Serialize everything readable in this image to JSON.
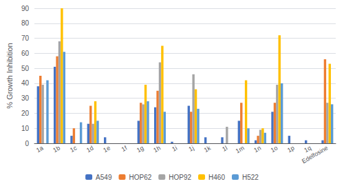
{
  "chart_data": {
    "type": "bar",
    "y_label": "% Growth Inhibition",
    "categories": [
      "1a",
      "1b",
      "1c",
      "1d",
      "1e",
      "1f",
      "1g",
      "1h",
      "1i",
      "1j",
      "1k",
      "1l",
      "1m",
      "1n",
      "1o",
      "1p",
      "1q",
      "Edelfosine"
    ],
    "series": [
      {
        "name": "A549",
        "color": "#4472C4",
        "values": [
          38,
          51,
          5,
          13,
          4,
          0,
          15,
          24,
          1,
          25,
          4,
          4,
          15,
          2,
          21,
          5,
          2,
          2
        ]
      },
      {
        "name": "HOP62",
        "color": "#ED7D31",
        "values": [
          45,
          58,
          10,
          25,
          0,
          0,
          27,
          35,
          0,
          21,
          0,
          0,
          27,
          5,
          27,
          0,
          0,
          56
        ]
      },
      {
        "name": "HOP92",
        "color": "#A5A5A5",
        "values": [
          39,
          68,
          0,
          13,
          0,
          0,
          26,
          54,
          0,
          46,
          0,
          11,
          0,
          9,
          39,
          0,
          0,
          27
        ]
      },
      {
        "name": "H460",
        "color": "#FFC000",
        "values": [
          0,
          90,
          0,
          28,
          0,
          0,
          39,
          65,
          0,
          36,
          0,
          0,
          42,
          10,
          72,
          0,
          0,
          53
        ]
      },
      {
        "name": "H522",
        "color": "#5B9BD5",
        "values": [
          42,
          61,
          14,
          15,
          0,
          0,
          28,
          21,
          0,
          23,
          0,
          0,
          10,
          7,
          40,
          0,
          0,
          26
        ]
      }
    ],
    "ylim": [
      0,
      90
    ],
    "yticks": [
      0,
      10,
      20,
      30,
      40,
      50,
      60,
      70,
      80,
      90
    ],
    "grid": true,
    "legend": "bottom"
  }
}
